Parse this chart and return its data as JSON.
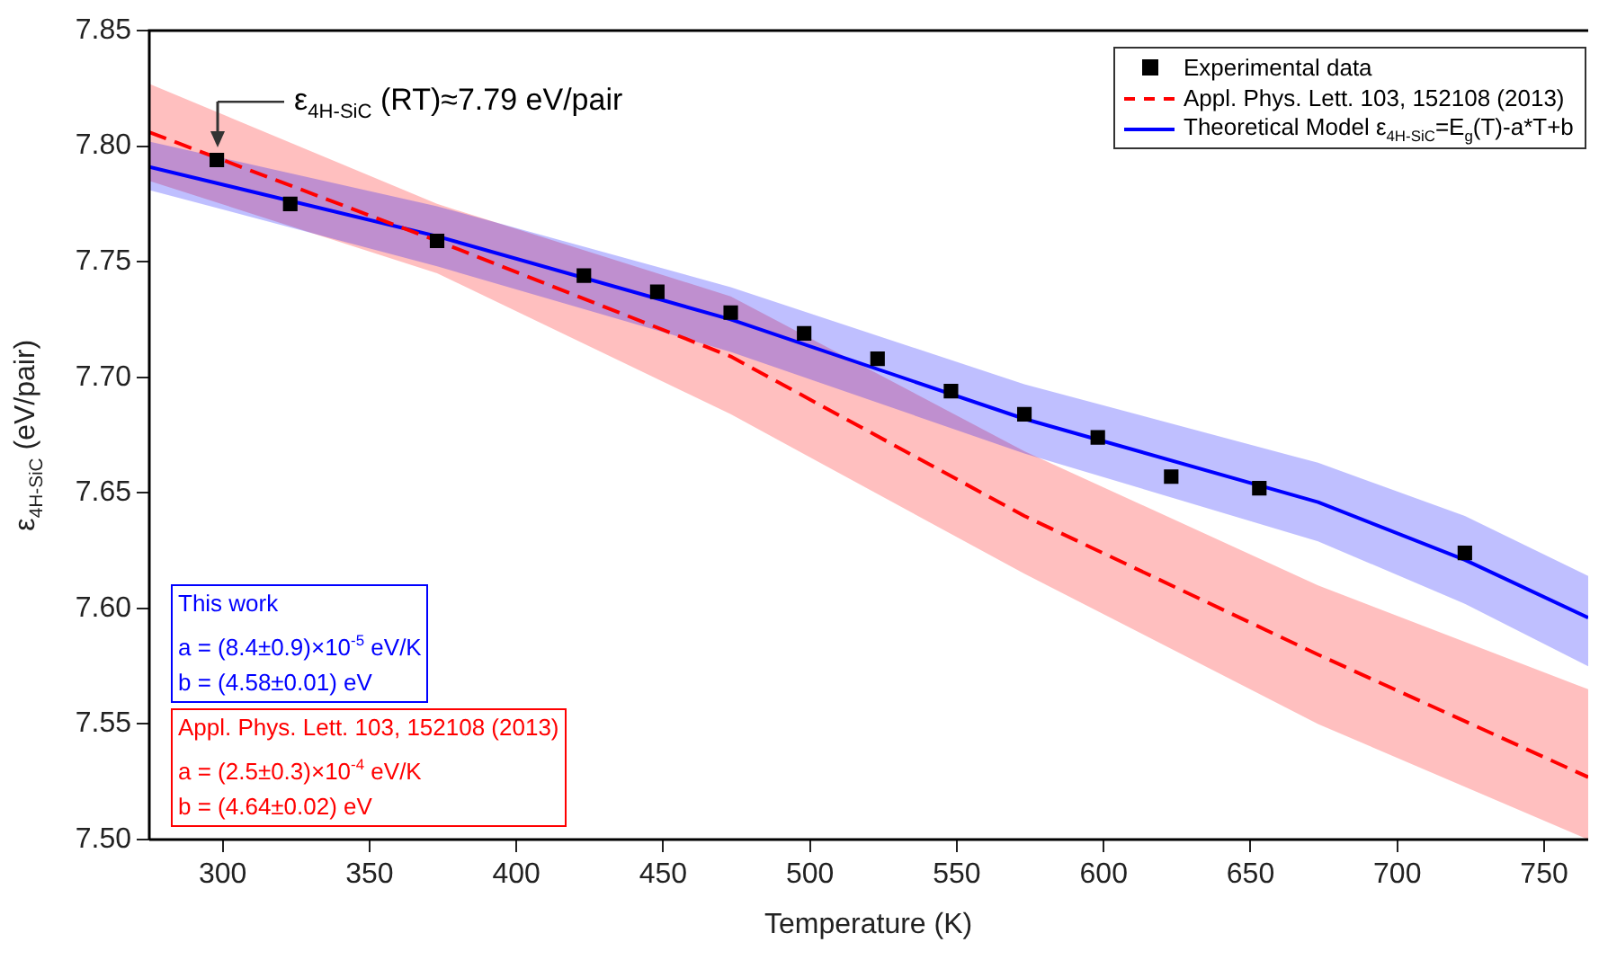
{
  "chart_data": {
    "type": "line",
    "xlabel": "Temperature (K)",
    "ylabel": "ε$_{4H-SiC}$ (eV/pair)",
    "xlim": [
      275,
      765
    ],
    "xticks": [
      300,
      350,
      400,
      450,
      500,
      550,
      600,
      650,
      700,
      750
    ],
    "ylim": [
      7.5,
      7.85
    ],
    "yticks": [
      {
        "value": 7.5,
        "label": "7.50"
      },
      {
        "value": 7.55,
        "label": "7.55"
      },
      {
        "value": 7.6,
        "label": "7.60"
      },
      {
        "value": 7.65,
        "label": "7.65"
      },
      {
        "value": 7.7,
        "label": "7.70"
      },
      {
        "value": 7.75,
        "label": "7.75"
      },
      {
        "value": 7.8,
        "label": "7.80"
      },
      {
        "value": 7.85,
        "label": "7.85"
      }
    ],
    "grid": false,
    "legend": "top right",
    "series": [
      {
        "name": "Experimental data",
        "type": "scatter",
        "marker": "square",
        "color": "#000000",
        "x": [
          298,
          323,
          373,
          423,
          448,
          473,
          498,
          523,
          548,
          573,
          598,
          623,
          653,
          723
        ],
        "values": [
          7.794,
          7.775,
          7.759,
          7.744,
          7.737,
          7.728,
          7.719,
          7.708,
          7.694,
          7.684,
          7.674,
          7.657,
          7.652,
          7.624
        ]
      },
      {
        "name": "Appl. Phys. Lett. 103, 152108 (2013)",
        "type": "line",
        "line_style": "dashed",
        "marker": "none",
        "color": "#ff0000",
        "x": [
          275,
          373,
          473,
          573,
          673,
          765
        ],
        "values": [
          7.806,
          7.759,
          7.709,
          7.64,
          7.58,
          7.527
        ],
        "lower": [
          7.785,
          7.745,
          7.684,
          7.615,
          7.55,
          7.5
        ],
        "upper": [
          7.827,
          7.775,
          7.735,
          7.668,
          7.61,
          7.565
        ]
      },
      {
        "name": "Theoretical Model ε$_{4H-SiC}$=E$_{g}$(T)-a*T+b",
        "type": "line",
        "line_style": "solid",
        "marker": "none",
        "color": "#0000ff",
        "x": [
          275,
          373,
          473,
          573,
          673,
          723,
          765
        ],
        "values": [
          7.791,
          7.761,
          7.725,
          7.682,
          7.646,
          7.621,
          7.596
        ],
        "lower": [
          7.781,
          7.748,
          7.711,
          7.667,
          7.629,
          7.602,
          7.575
        ],
        "upper": [
          7.802,
          7.774,
          7.739,
          7.697,
          7.663,
          7.64,
          7.614
        ]
      }
    ],
    "annotations": [
      {
        "text": "ε$_{4H-SiC}$ (RT)≈7.79 eV/pair",
        "x": 298,
        "y": 7.794
      },
      "This work\na = (8.4±0.9)×10$^{-5}$ eV/K\nb = (4.58±0.01) eV",
      "Appl. Phys. Lett. 103, 152108 (2013)\na = (2.5±0.3)×10$^{-4}$ eV/K\nb = (4.64±0.02) eV"
    ]
  }
}
